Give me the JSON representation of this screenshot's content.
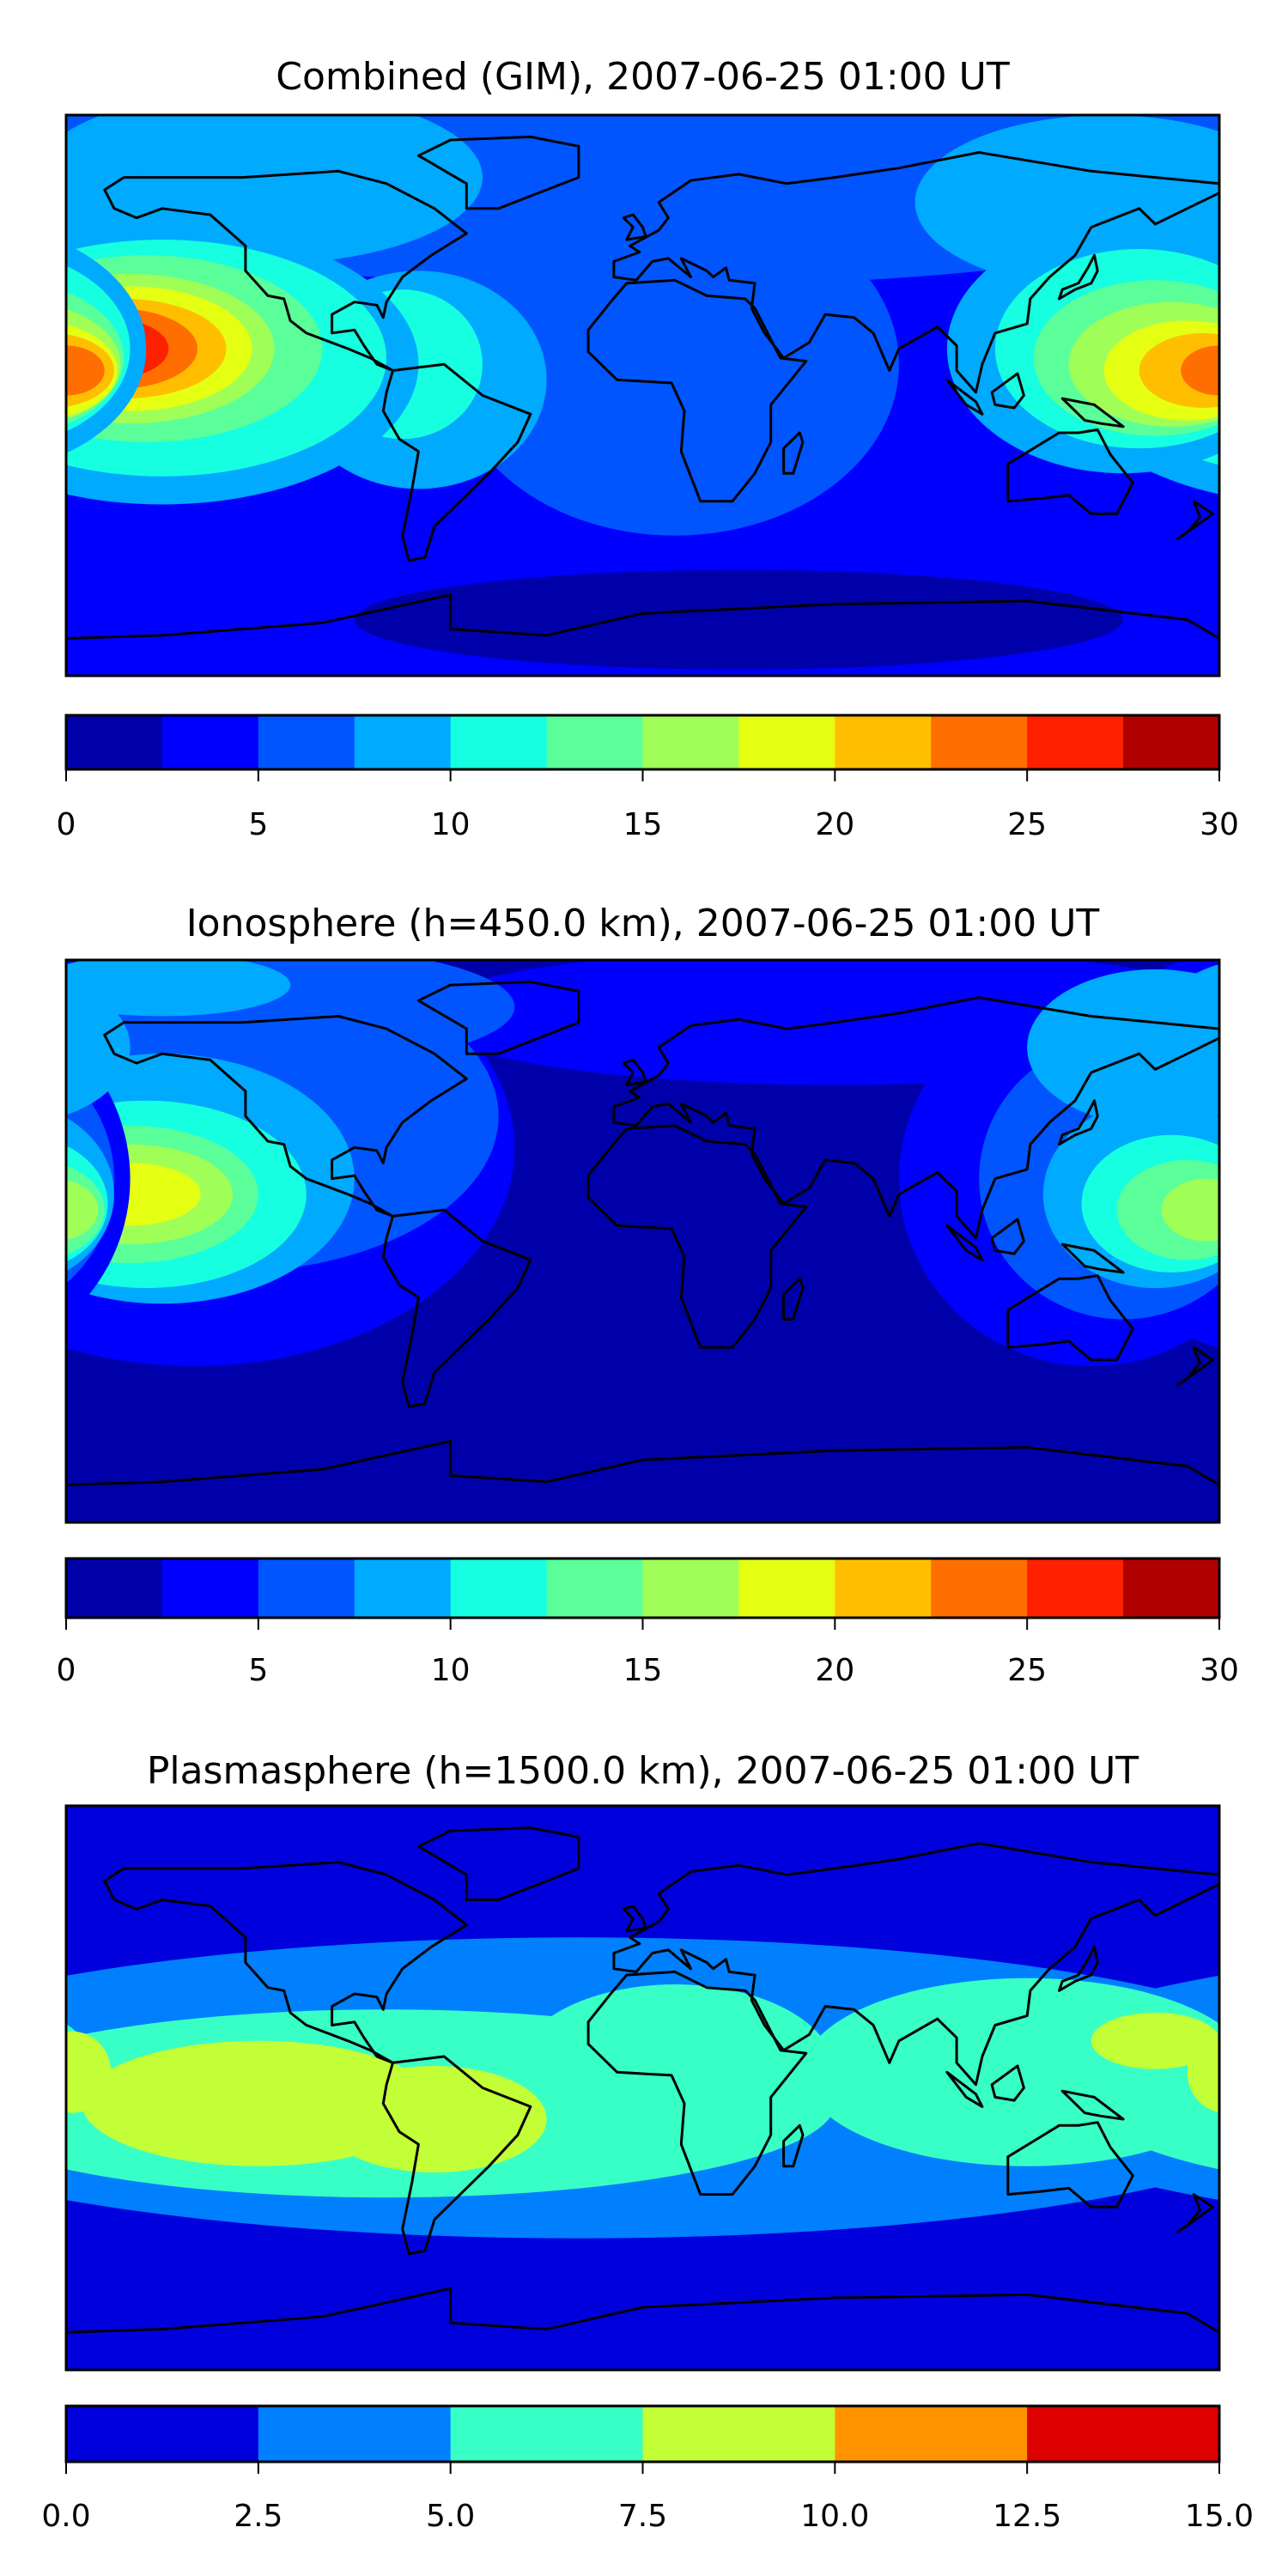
{
  "chart_data": [
    {
      "type": "heatmap",
      "subtype": "filled-contour-map",
      "title": "Combined (GIM), 2007-06-25 01:00 UT",
      "levels": [
        0,
        2.5,
        5,
        7.5,
        10,
        12.5,
        15,
        17.5,
        20,
        22.5,
        25,
        27.5,
        30
      ],
      "colors": [
        "#0000aa",
        "#0000ff",
        "#0055ff",
        "#00aaff",
        "#15ffe0",
        "#5aff9a",
        "#a0ff56",
        "#e5ff13",
        "#ffbf00",
        "#ff6e00",
        "#ff2000",
        "#b00000"
      ],
      "colorbar_ticks": [
        "0",
        "5",
        "10",
        "15",
        "20",
        "25",
        "30"
      ],
      "colorbar_tick_values": [
        0,
        5,
        10,
        15,
        20,
        25,
        30
      ],
      "base_level": 1,
      "regions": [
        {
          "level": 2,
          "lon": 0,
          "lat": 75,
          "rlon": 220,
          "rlat": 40
        },
        {
          "level": 3,
          "lon": -120,
          "lat": 70,
          "rlon": 70,
          "rlat": 28
        },
        {
          "level": 3,
          "lon": 145,
          "lat": 62,
          "rlon": 60,
          "rlat": 28
        },
        {
          "level": 2,
          "lon": 10,
          "lat": 10,
          "rlon": 70,
          "rlat": 55
        },
        {
          "level": 0,
          "lon": 30,
          "lat": -72,
          "rlon": 120,
          "rlat": 16
        },
        {
          "level": 3,
          "lon": -70,
          "lat": 5,
          "rlon": 40,
          "rlat": 35
        },
        {
          "level": 4,
          "lon": -75,
          "lat": 10,
          "rlon": 25,
          "rlat": 24
        },
        {
          "level": 3,
          "lon": -150,
          "lat": 10,
          "rlon": 80,
          "rlat": 45
        },
        {
          "level": 4,
          "lon": -150,
          "lat": 12,
          "rlon": 70,
          "rlat": 38
        },
        {
          "level": 5,
          "lon": -155,
          "lat": 15,
          "rlon": 55,
          "rlat": 30
        },
        {
          "level": 6,
          "lon": -160,
          "lat": 15,
          "rlon": 45,
          "rlat": 24
        },
        {
          "level": 7,
          "lon": -160,
          "lat": 15,
          "rlon": 38,
          "rlat": 20
        },
        {
          "level": 8,
          "lon": -162,
          "lat": 15,
          "rlon": 32,
          "rlat": 16
        },
        {
          "level": 9,
          "lon": -165,
          "lat": 15,
          "rlon": 26,
          "rlat": 13
        },
        {
          "level": 10,
          "lon": -168,
          "lat": 15,
          "rlon": 20,
          "rlat": 10
        },
        {
          "level": 3,
          "lon": 150,
          "lat": 15,
          "rlon": 55,
          "rlat": 40
        },
        {
          "level": 4,
          "lon": 155,
          "lat": 15,
          "rlon": 45,
          "rlat": 32
        },
        {
          "level": 5,
          "lon": 160,
          "lat": 12,
          "rlon": 38,
          "rlat": 25
        },
        {
          "level": 6,
          "lon": 165,
          "lat": 10,
          "rlon": 32,
          "rlat": 20
        },
        {
          "level": 7,
          "lon": 170,
          "lat": 8,
          "rlon": 26,
          "rlat": 16
        },
        {
          "level": 8,
          "lon": 175,
          "lat": 8,
          "rlon": 20,
          "rlat": 12
        },
        {
          "level": 9,
          "lon": 180,
          "lat": 8,
          "rlon": 12,
          "rlat": 8
        }
      ]
    },
    {
      "type": "heatmap",
      "subtype": "filled-contour-map",
      "title": "Ionosphere  (h=450.0 km), 2007-06-25 01:00 UT",
      "levels": [
        0,
        2.5,
        5,
        7.5,
        10,
        12.5,
        15,
        17.5,
        20,
        22.5,
        25,
        27.5,
        30
      ],
      "colors": [
        "#0000aa",
        "#0000ff",
        "#0055ff",
        "#00aaff",
        "#15ffe0",
        "#5aff9a",
        "#a0ff56",
        "#e5ff13",
        "#ffbf00",
        "#ff6e00",
        "#ff2000",
        "#b00000"
      ],
      "colorbar_ticks": [
        "0",
        "5",
        "10",
        "15",
        "20",
        "25",
        "30"
      ],
      "colorbar_tick_values": [
        0,
        5,
        10,
        15,
        20,
        25,
        30
      ],
      "base_level": 0,
      "regions": [
        {
          "level": 1,
          "lon": -140,
          "lat": 30,
          "rlon": 100,
          "rlat": 70
        },
        {
          "level": 1,
          "lon": 60,
          "lat": 72,
          "rlon": 130,
          "rlat": 22
        },
        {
          "level": 2,
          "lon": -130,
          "lat": 40,
          "rlon": 85,
          "rlat": 50
        },
        {
          "level": 2,
          "lon": -120,
          "lat": 75,
          "rlon": 80,
          "rlat": 20
        },
        {
          "level": 3,
          "lon": -150,
          "lat": 82,
          "rlon": 40,
          "rlat": 10
        },
        {
          "level": 3,
          "lon": -150,
          "lat": 20,
          "rlon": 60,
          "rlat": 40
        },
        {
          "level": 4,
          "lon": -155,
          "lat": 15,
          "rlon": 50,
          "rlat": 30
        },
        {
          "level": 5,
          "lon": -160,
          "lat": 15,
          "rlon": 40,
          "rlat": 22
        },
        {
          "level": 6,
          "lon": -160,
          "lat": 15,
          "rlon": 32,
          "rlat": 16
        },
        {
          "level": 7,
          "lon": -160,
          "lat": 15,
          "rlon": 22,
          "rlat": 10
        },
        {
          "level": 1,
          "lon": 140,
          "lat": 20,
          "rlon": 60,
          "rlat": 60
        },
        {
          "level": 2,
          "lon": 150,
          "lat": 20,
          "rlon": 45,
          "rlat": 45
        },
        {
          "level": 3,
          "lon": 160,
          "lat": 62,
          "rlon": 40,
          "rlat": 25
        },
        {
          "level": 3,
          "lon": 160,
          "lat": 15,
          "rlon": 35,
          "rlat": 30
        },
        {
          "level": 4,
          "lon": 165,
          "lat": 12,
          "rlon": 28,
          "rlat": 22
        },
        {
          "level": 5,
          "lon": 170,
          "lat": 10,
          "rlon": 22,
          "rlat": 16
        },
        {
          "level": 6,
          "lon": 176,
          "lat": 10,
          "rlon": 14,
          "rlat": 10
        }
      ]
    },
    {
      "type": "heatmap",
      "subtype": "filled-contour-map",
      "title": "Plasmasphere (h=1500.0 km), 2007-06-25 01:00 UT",
      "levels": [
        0,
        2.5,
        5,
        7.5,
        10,
        12.5,
        15
      ],
      "colors": [
        "#0000dd",
        "#0080ff",
        "#38ffc5",
        "#c3ff36",
        "#ff9400",
        "#dd0000"
      ],
      "colorbar_ticks": [
        "0.0",
        "2.5",
        "5.0",
        "7.5",
        "10.0",
        "12.5",
        "15.0"
      ],
      "colorbar_tick_values": [
        0,
        2.5,
        5,
        7.5,
        10,
        12.5,
        15
      ],
      "base_level": 0,
      "regions": [
        {
          "level": 1,
          "lon": -20,
          "lat": 0,
          "rlon": 240,
          "rlat": 48
        },
        {
          "level": 2,
          "lon": -80,
          "lat": -5,
          "rlon": 140,
          "rlat": 30
        },
        {
          "level": 2,
          "lon": 120,
          "lat": 5,
          "rlon": 70,
          "rlat": 30
        },
        {
          "level": 2,
          "lon": 10,
          "lat": 5,
          "rlon": 50,
          "rlat": 28
        },
        {
          "level": 3,
          "lon": -120,
          "lat": -5,
          "rlon": 55,
          "rlat": 20
        },
        {
          "level": 3,
          "lon": -65,
          "lat": -10,
          "rlon": 35,
          "rlat": 17
        },
        {
          "level": 3,
          "lon": -178,
          "lat": 5,
          "rlon": 12,
          "rlat": 13
        },
        {
          "level": 3,
          "lon": 160,
          "lat": 15,
          "rlon": 20,
          "rlat": 9
        }
      ]
    }
  ]
}
